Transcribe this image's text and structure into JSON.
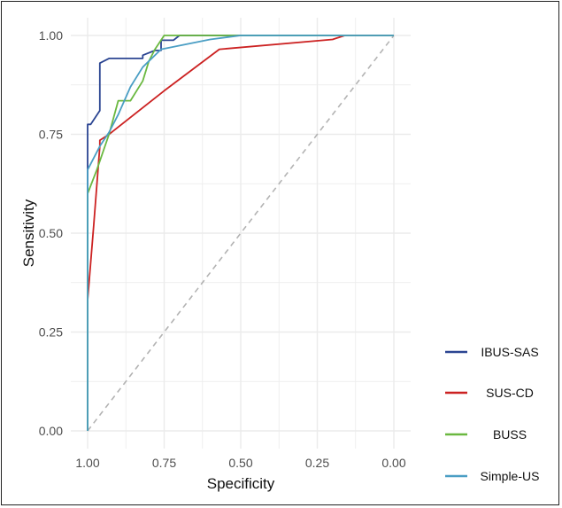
{
  "chart_data": {
    "type": "line",
    "title": "",
    "xlabel": "Specificity",
    "ylabel": "Sensitivity",
    "x_reversed": true,
    "xlim": [
      1.0,
      0.0
    ],
    "ylim": [
      0.0,
      1.0
    ],
    "x_ticks": [
      "1.00",
      "0.75",
      "0.50",
      "0.25",
      "0.00"
    ],
    "y_ticks": [
      "0.00",
      "0.25",
      "0.50",
      "0.75",
      "1.00"
    ],
    "grid": true,
    "legend_position": "right",
    "reference_line": {
      "name": "chance",
      "color": "#b3b3b3",
      "dashed": true,
      "x": [
        1.0,
        0.0
      ],
      "y": [
        0.0,
        1.0
      ]
    },
    "series": [
      {
        "name": "IBUS-SAS",
        "color": "#2b4592",
        "x": [
          1.0,
          1.0,
          1.0,
          0.99,
          0.96,
          0.96,
          0.93,
          0.88,
          0.82,
          0.82,
          0.78,
          0.76,
          0.76,
          0.72,
          0.7,
          0.68,
          0.65,
          0.6,
          0.5,
          0.0
        ],
        "y": [
          0.0,
          0.66,
          0.775,
          0.775,
          0.81,
          0.93,
          0.942,
          0.942,
          0.942,
          0.95,
          0.962,
          0.962,
          0.988,
          0.988,
          1.0,
          1.0,
          1.0,
          1.0,
          1.0,
          1.0
        ]
      },
      {
        "name": "SUS-CD",
        "color": "#cc2222",
        "x": [
          1.0,
          1.0,
          0.98,
          0.96,
          0.96,
          0.93,
          0.75,
          0.57,
          0.2,
          0.16,
          0.0
        ],
        "y": [
          0.0,
          0.33,
          0.52,
          0.72,
          0.735,
          0.75,
          0.86,
          0.965,
          0.99,
          1.0,
          1.0
        ],
        "note": "series is drawn by script"
      },
      {
        "name": "BUSS",
        "color": "#6ab840",
        "x": [
          1.0,
          1.0,
          0.97,
          0.93,
          0.9,
          0.86,
          0.82,
          0.8,
          0.78,
          0.75,
          0.7,
          0.65,
          0.0
        ],
        "y": [
          0.0,
          0.6,
          0.66,
          0.75,
          0.835,
          0.835,
          0.885,
          0.935,
          0.965,
          1.0,
          1.0,
          1.0,
          1.0
        ]
      },
      {
        "name": "Simple-US",
        "color": "#4a9ec4",
        "x": [
          1.0,
          1.0,
          1.0,
          0.96,
          0.93,
          0.9,
          0.86,
          0.82,
          0.76,
          0.6,
          0.5,
          0.2,
          0.0
        ],
        "y": [
          0.0,
          0.3,
          0.66,
          0.72,
          0.755,
          0.8,
          0.87,
          0.92,
          0.965,
          0.99,
          1.0,
          1.0,
          1.0
        ]
      }
    ]
  },
  "colors": {
    "grid": "#ebebeb",
    "background": "#ffffff",
    "tick_text": "#4d4d4d"
  }
}
